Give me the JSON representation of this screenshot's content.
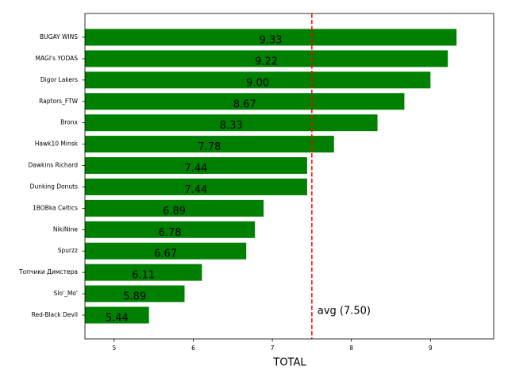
{
  "chart_data": {
    "type": "barh",
    "x_label": "TOTAL",
    "categories": [
      "BUGAY WINS",
      "MAGI's YODAS",
      "Digor Lakers",
      "Raptors_FTW",
      "Bronx",
      "Hawk10 Minsk",
      "Dawkins Richard",
      "Dunking Donuts",
      "1BOBka Celtics",
      "NikiNine",
      "Spurzz",
      "Топчики Димстера",
      "Slo'_Mo'",
      "Red-Black Devil"
    ],
    "values": [
      9.33,
      9.22,
      9.0,
      8.67,
      8.33,
      7.78,
      7.44,
      7.44,
      6.89,
      6.78,
      6.67,
      6.11,
      5.89,
      5.44
    ],
    "value_labels": [
      "9.33",
      "9.22",
      "9.00",
      "8.67",
      "8.33",
      "7.78",
      "7.44",
      "7.44",
      "6.89",
      "6.78",
      "6.67",
      "6.11",
      "5.89",
      "5.44"
    ],
    "color": "#008000",
    "average": 7.5,
    "average_label": "avg (7.50)",
    "average_color": "#ff0000",
    "xlim": [
      4.63,
      9.8
    ],
    "xticks": [
      5,
      6,
      7,
      8,
      9
    ]
  }
}
